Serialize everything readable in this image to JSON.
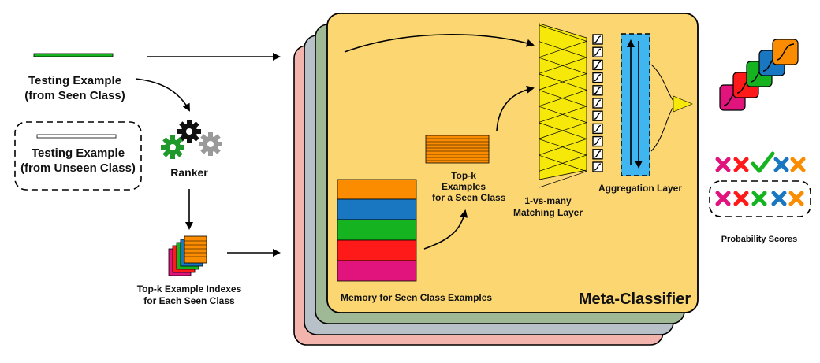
{
  "labels": {
    "testing_seen": [
      "Testing Example",
      "(from Seen Class)"
    ],
    "testing_unseen": [
      "Testing Example",
      "(from Unseen Class)"
    ],
    "ranker": "Ranker",
    "topk_indexes": [
      "Top-k Example Indexes",
      "for Each Seen Class"
    ],
    "topk_examples": [
      "Top-k",
      "Examples",
      "for a Seen Class"
    ],
    "matching_layer": [
      "1-vs-many",
      "Matching Layer"
    ],
    "aggregation_layer": "Aggregation Layer",
    "memory": "Memory for Seen Class Examples",
    "meta_classifier": "Meta-Classifier",
    "probability_scores": "Probability Scores"
  },
  "colors": {
    "panel_yellow": "#fcd771",
    "panel_green": "#9fb896",
    "panel_blue": "#b8c1c8",
    "panel_pink": "#f3b4ae",
    "orange": "#fb8c00",
    "blue": "#1976c0",
    "green": "#15b320",
    "red": "#ff1a1a",
    "magenta": "#e0147c",
    "cyan": "#3fb6f0",
    "triangle": "#f6e90a",
    "gear_black": "#111111",
    "gear_green": "#1f9a2a",
    "gear_gray": "#9a9a9a"
  },
  "icons": [
    "gear-icon",
    "check-icon",
    "cross-icon",
    "sigmoid-icon"
  ]
}
